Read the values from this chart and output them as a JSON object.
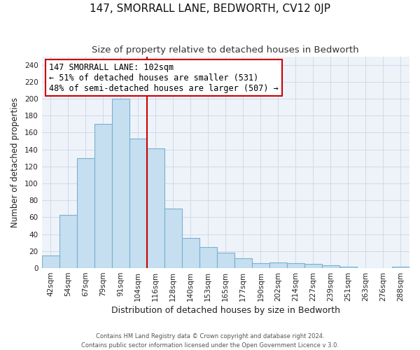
{
  "title": "147, SMORRALL LANE, BEDWORTH, CV12 0JP",
  "subtitle": "Size of property relative to detached houses in Bedworth",
  "xlabel": "Distribution of detached houses by size in Bedworth",
  "ylabel": "Number of detached properties",
  "footer_line1": "Contains HM Land Registry data © Crown copyright and database right 2024.",
  "footer_line2": "Contains public sector information licensed under the Open Government Licence v 3.0.",
  "bar_labels": [
    "42sqm",
    "54sqm",
    "67sqm",
    "79sqm",
    "91sqm",
    "104sqm",
    "116sqm",
    "128sqm",
    "140sqm",
    "153sqm",
    "165sqm",
    "177sqm",
    "190sqm",
    "202sqm",
    "214sqm",
    "227sqm",
    "239sqm",
    "251sqm",
    "263sqm",
    "276sqm",
    "288sqm"
  ],
  "bar_values": [
    15,
    63,
    130,
    170,
    200,
    153,
    141,
    70,
    36,
    25,
    18,
    12,
    6,
    7,
    6,
    5,
    3,
    2,
    0,
    0,
    2
  ],
  "bar_color": "#c5dff0",
  "bar_edge_color": "#7aafcf",
  "annotation_text": "147 SMORRALL LANE: 102sqm\n← 51% of detached houses are smaller (531)\n48% of semi-detached houses are larger (507) →",
  "annotation_box_edge_color": "#cc0000",
  "vline_x": 5.5,
  "vline_color": "#cc0000",
  "ylim": [
    0,
    250
  ],
  "yticks": [
    0,
    20,
    40,
    60,
    80,
    100,
    120,
    140,
    160,
    180,
    200,
    220,
    240
  ],
  "title_fontsize": 11,
  "subtitle_fontsize": 9.5,
  "xlabel_fontsize": 9,
  "ylabel_fontsize": 8.5,
  "tick_fontsize": 7.5,
  "annotation_fontsize": 8.5,
  "grid_color": "#d0dae8",
  "bg_color": "#eef3fa"
}
